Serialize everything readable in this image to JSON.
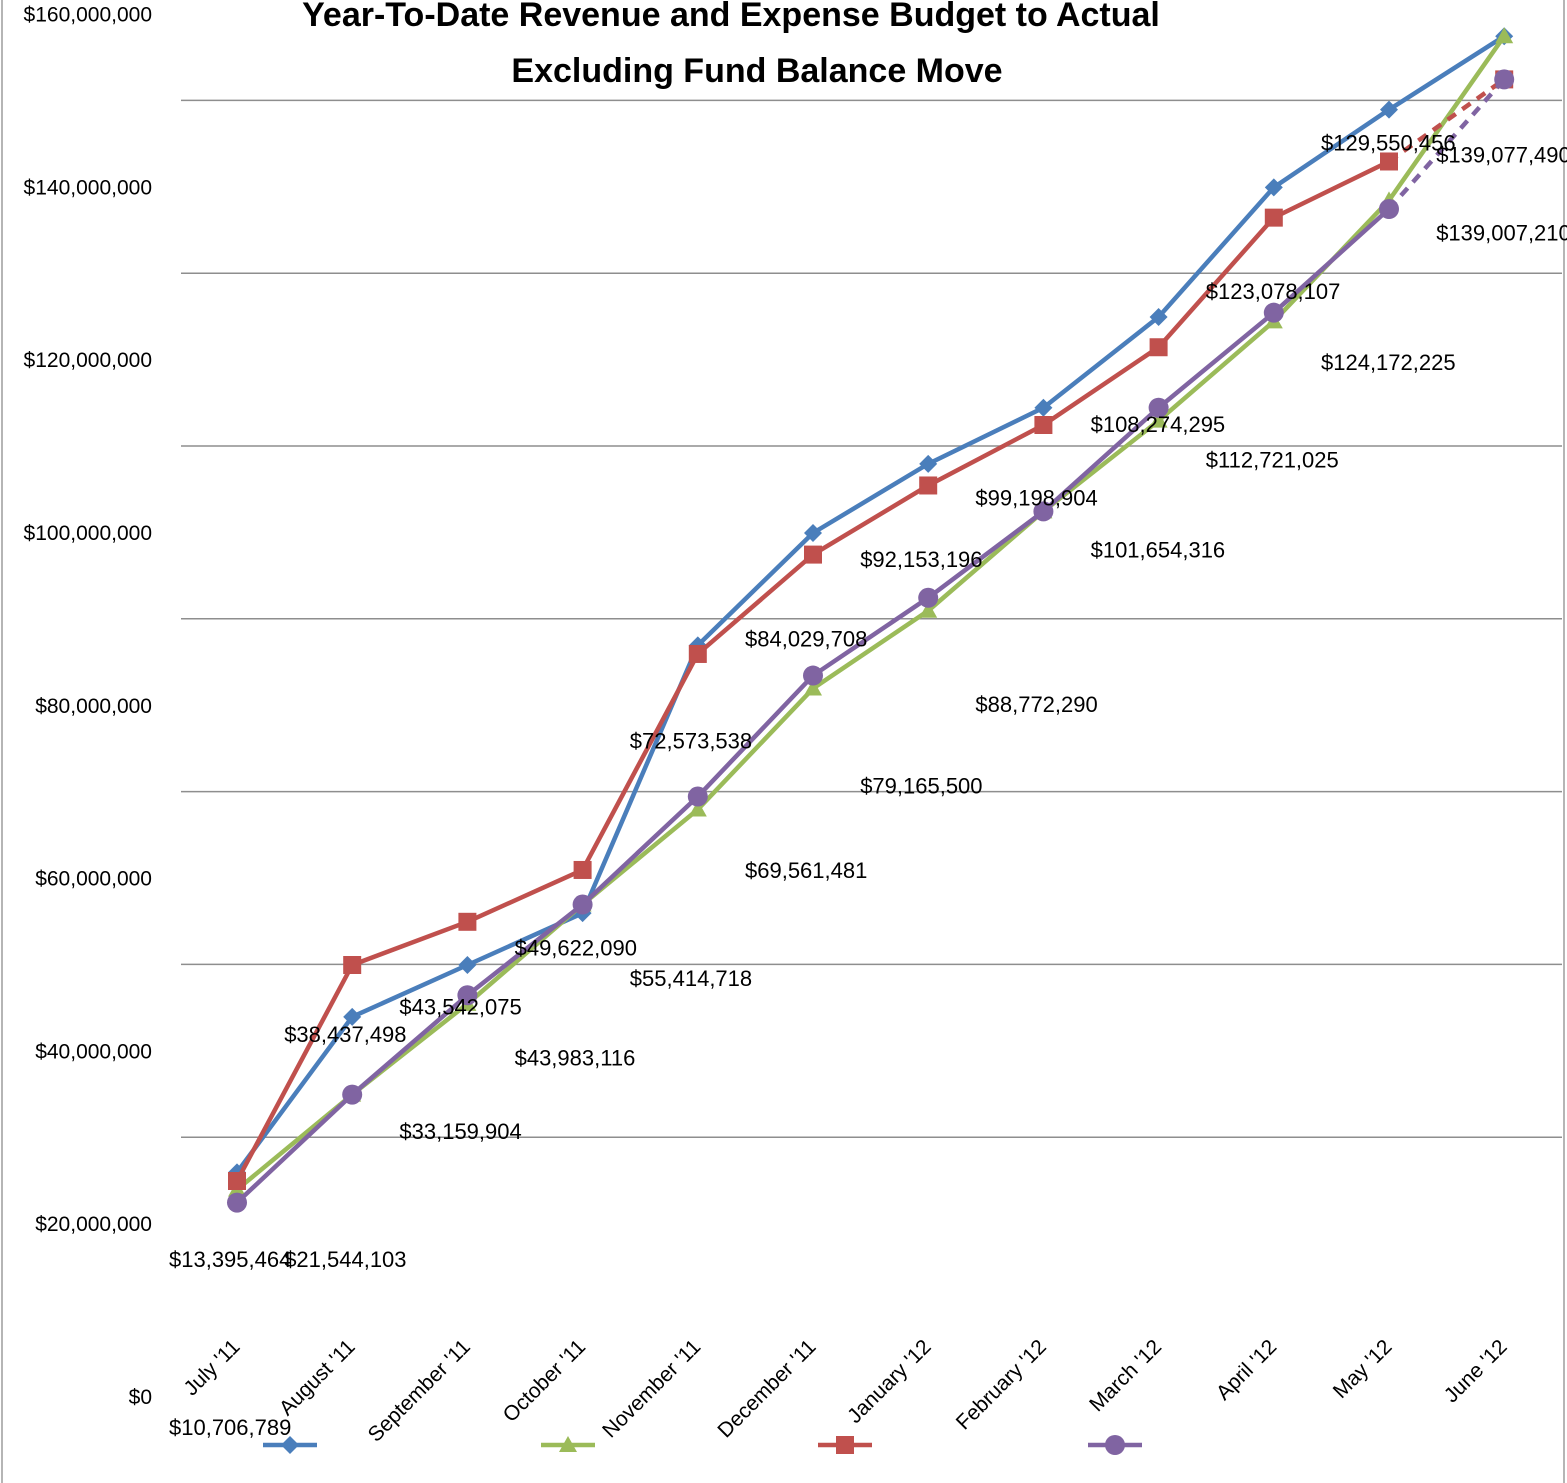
{
  "chart_data": {
    "type": "line",
    "title": "Year-To-Date Revenue and Expense Budget to Actual Excluding Fund Balance Move",
    "title_lines": [
      "Year-To-Date Revenue and Expense Budget to Actual",
      "Excluding Fund Balance Move"
    ],
    "xlabel": "",
    "ylabel": "",
    "ylim": [
      0,
      160000000
    ],
    "yticks": [
      0,
      20000000,
      40000000,
      60000000,
      80000000,
      100000000,
      120000000,
      140000000,
      160000000
    ],
    "ytick_labels": [
      "$0",
      "$20,000,000",
      "$40,000,000",
      "$60,000,000",
      "$80,000,000",
      "$100,000,000",
      "$120,000,000",
      "$140,000,000",
      "$160,000,000"
    ],
    "categories": [
      "July '11",
      "August '11",
      "September '11",
      "October '11",
      "November '11",
      "December '11",
      "January '12",
      "February '12",
      "March '12",
      "April '12",
      "May '12",
      "June '12"
    ],
    "grid": true,
    "legend": "bottom",
    "series": [
      {
        "color": "#4a7ebb",
        "marker": "diamond",
        "values": [
          26000000,
          44000000,
          50000000,
          56000000,
          87000000,
          100000000,
          108000000,
          114500000,
          125000000,
          140000000,
          149000000,
          157500000
        ]
      },
      {
        "color": "#9bbb59",
        "marker": "triangle",
        "values": [
          24000000,
          35000000,
          45500000,
          57000000,
          68000000,
          82000000,
          91000000,
          102500000,
          113000000,
          124500000,
          138500000,
          157500000
        ]
      },
      {
        "color": "#c0504d",
        "marker": "square",
        "values": [
          25000000,
          50000000,
          55000000,
          61000000,
          86000000,
          97500000,
          105500000,
          112500000,
          121500000,
          136500000,
          143000000,
          152500000
        ],
        "dashed_last_segment": true
      },
      {
        "color": "#8064a2",
        "marker": "circle",
        "values": [
          22500000,
          35000000,
          46500000,
          57000000,
          69500000,
          83500000,
          92500000,
          102500000,
          114500000,
          125500000,
          137500000,
          152500000
        ],
        "dashed_last_segment": true
      }
    ],
    "annotations": [
      {
        "text": "$10,706,789",
        "category": 0,
        "y": -3500000
      },
      {
        "text": "$13,395,464",
        "category": 0,
        "y": 16000000
      },
      {
        "text": "$21,544,103",
        "category": 1,
        "y": 16000000
      },
      {
        "text": "$38,437,498",
        "category": 1,
        "y": 42000000
      },
      {
        "text": "$33,159,904",
        "category": 2,
        "y": 30800000
      },
      {
        "text": "$43,542,075",
        "category": 2,
        "y": 45200000
      },
      {
        "text": "$43,983,116",
        "category": 3,
        "y": 39300000
      },
      {
        "text": "$49,622,090",
        "category": 3,
        "y": 52000000
      },
      {
        "text": "$55,414,718",
        "category": 4,
        "y": 48500000
      },
      {
        "text": "$72,573,538",
        "category": 4,
        "y": 76000000
      },
      {
        "text": "$69,561,481",
        "category": 5,
        "y": 61000000
      },
      {
        "text": "$84,029,708",
        "category": 5,
        "y": 87800000
      },
      {
        "text": "$79,165,500",
        "category": 6,
        "y": 70800000
      },
      {
        "text": "$92,153,196",
        "category": 6,
        "y": 97000000
      },
      {
        "text": "$88,772,290",
        "category": 7,
        "y": 80200000
      },
      {
        "text": "$99,198,904",
        "category": 7,
        "y": 104100000
      },
      {
        "text": "$101,654,316",
        "category": 8,
        "y": 98100000
      },
      {
        "text": "$108,274,295",
        "category": 8,
        "y": 112600000
      },
      {
        "text": "$112,721,025",
        "category": 9,
        "y": 108500000
      },
      {
        "text": "$123,078,107",
        "category": 9,
        "y": 128000000
      },
      {
        "text": "$124,172,225",
        "category": 10,
        "y": 119800000
      },
      {
        "text": "$129,550,456",
        "category": 10,
        "y": 145200000
      },
      {
        "text": "$139,077,490",
        "category": 11,
        "y": 143800000
      },
      {
        "text": "$139,007,210",
        "category": 11,
        "y": 134800000
      }
    ]
  }
}
